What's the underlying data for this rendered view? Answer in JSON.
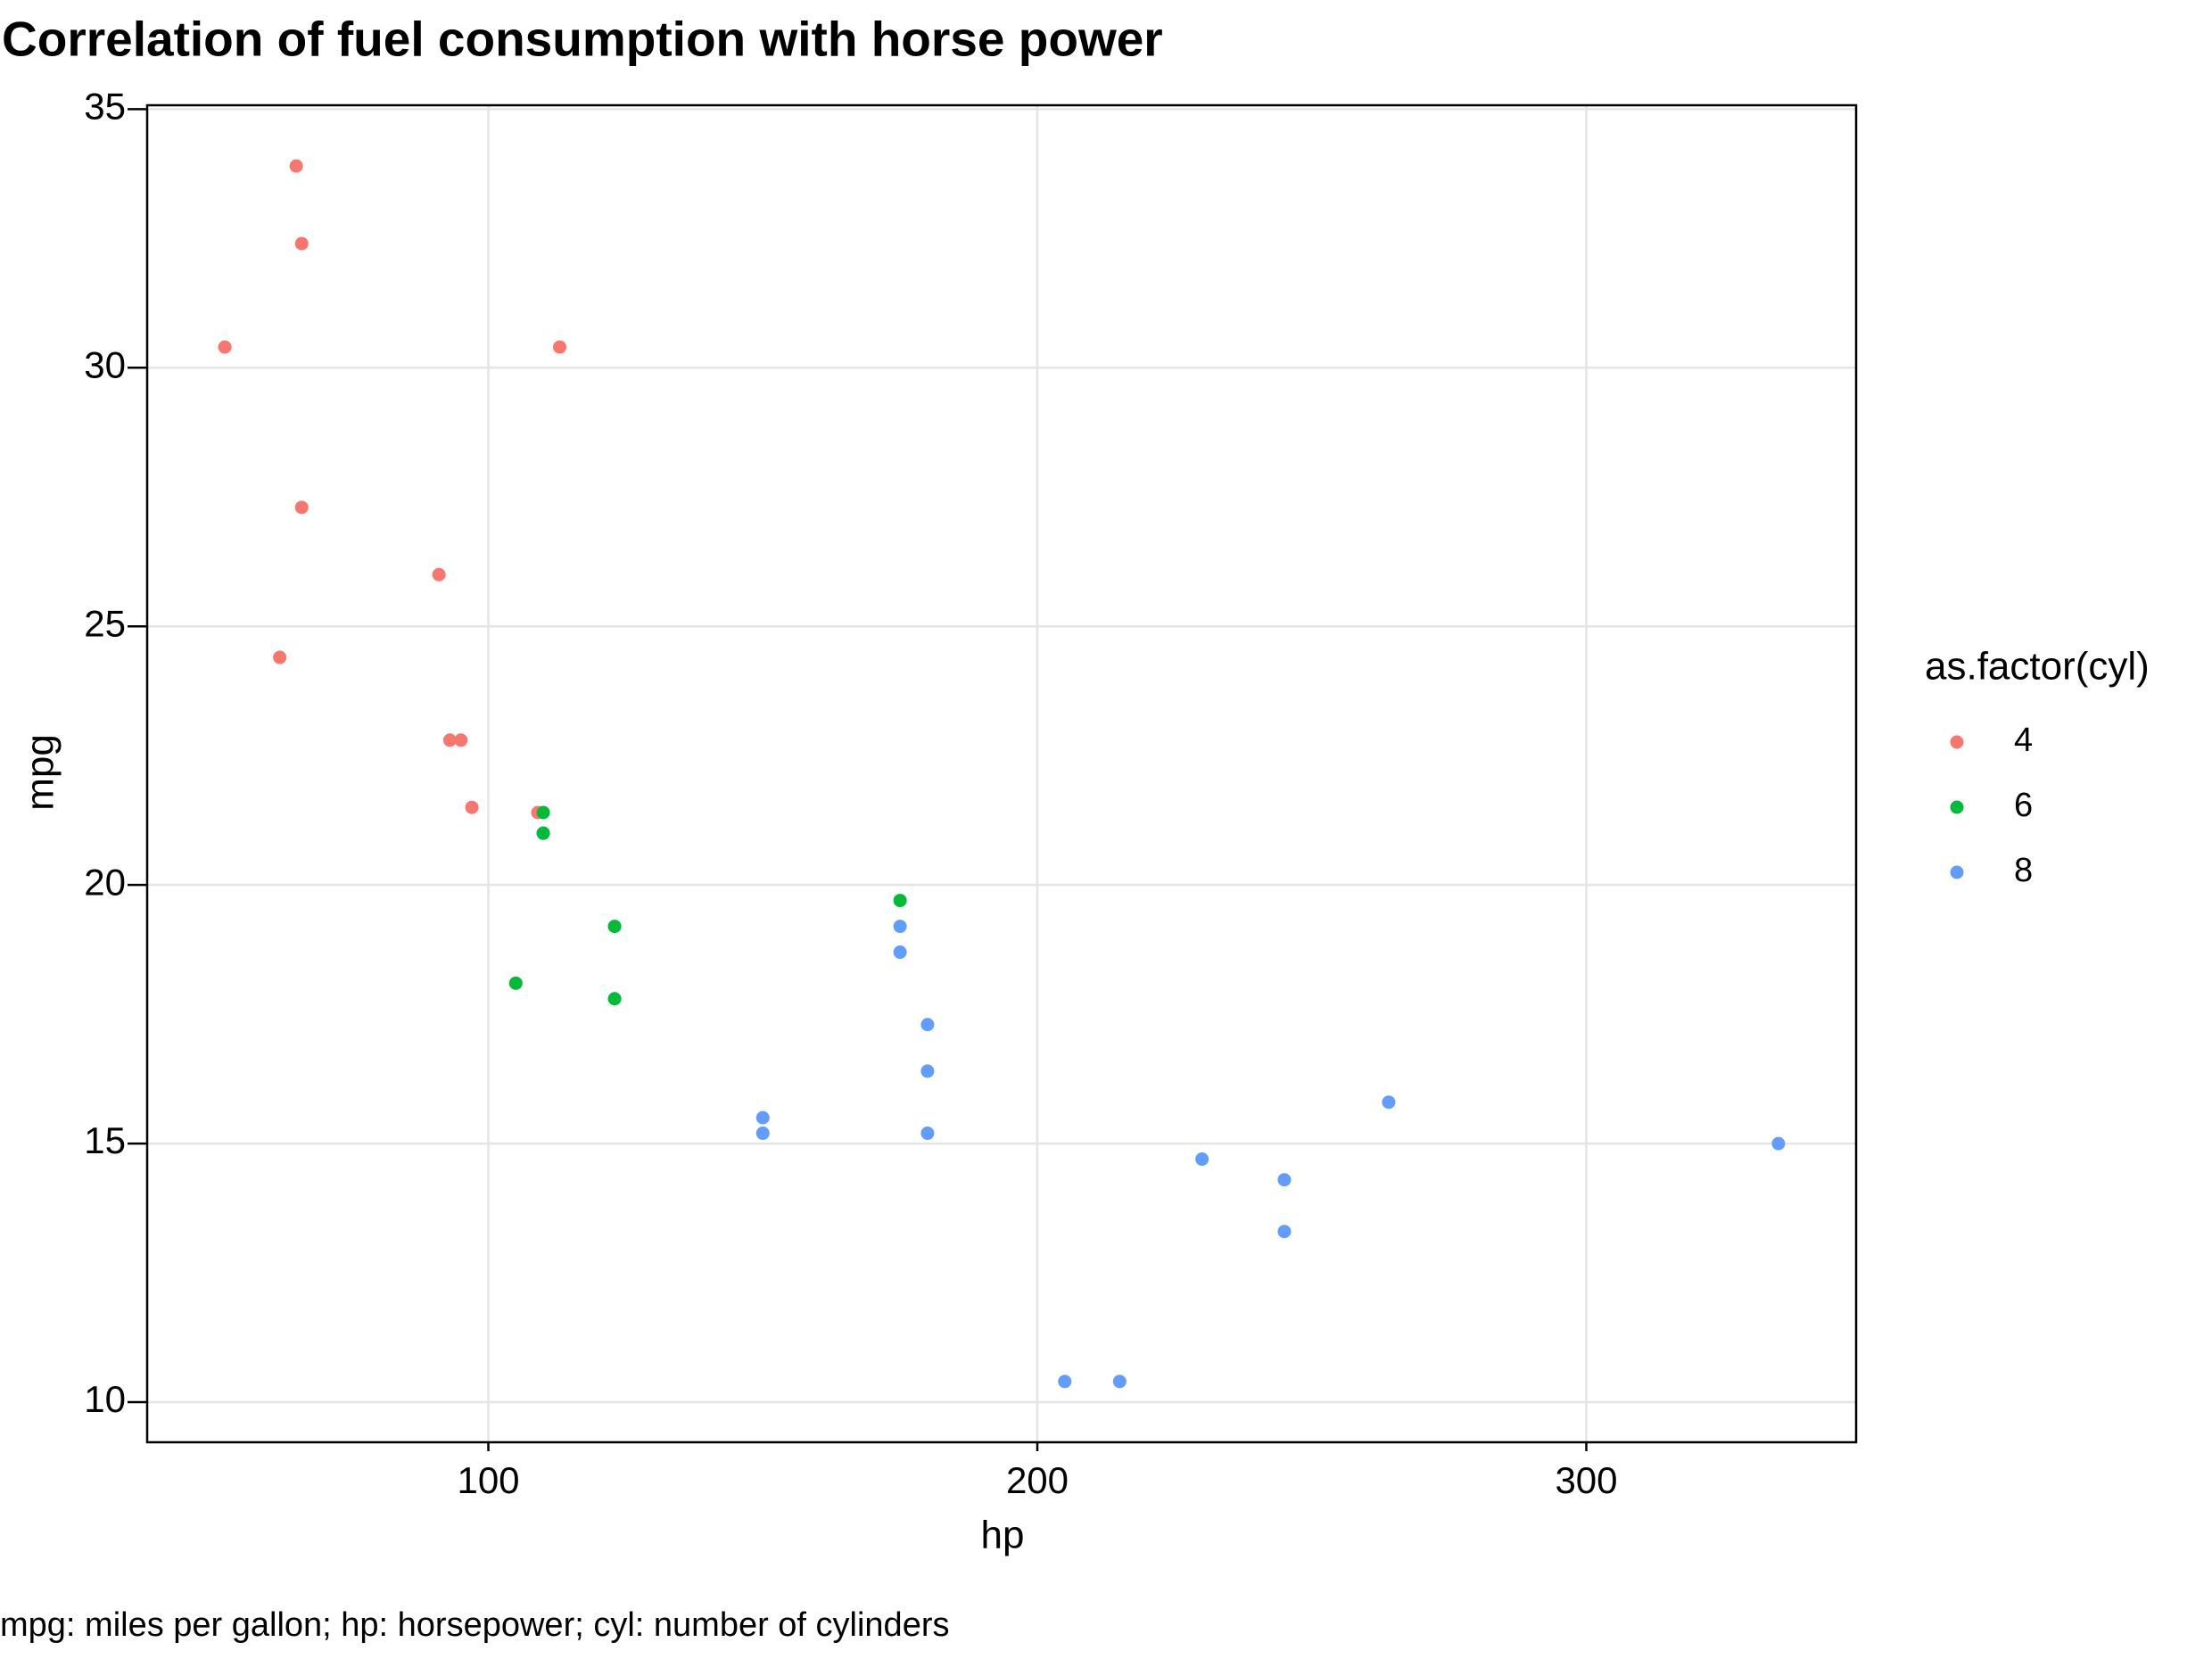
{
  "chart_data": {
    "type": "scatter",
    "title": "Correlation of fuel consumption with horse power",
    "caption": "mpg: miles per gallon; hp: horsepower; cyl: number of cylinders",
    "x_label": "hp",
    "y_label": "mpg",
    "legend_title": "as.factor(cyl)",
    "legend_position": "right",
    "grid": true,
    "xlim": [
      37.85,
      349.15
    ],
    "ylim": [
      9.225,
      35.075
    ],
    "xticks": [
      100,
      200,
      300
    ],
    "yticks": [
      10,
      15,
      20,
      25,
      30,
      35
    ],
    "series": [
      {
        "name": "4",
        "color": "#f8766d",
        "x": [
          93,
          62,
          95,
          66,
          52,
          65,
          97,
          66,
          91,
          113,
          109
        ],
        "values": [
          22.8,
          24.4,
          22.8,
          32.4,
          30.4,
          33.9,
          21.5,
          27.3,
          26.0,
          30.4,
          21.4
        ]
      },
      {
        "name": "6",
        "color": "#00ba38",
        "x": [
          110,
          110,
          110,
          105,
          123,
          123,
          175
        ],
        "values": [
          21.0,
          21.0,
          21.4,
          18.1,
          19.2,
          17.8,
          19.7
        ]
      },
      {
        "name": "8",
        "color": "#619cff",
        "x": [
          175,
          245,
          180,
          180,
          180,
          205,
          215,
          230,
          150,
          150,
          245,
          335,
          264,
          175
        ],
        "values": [
          18.7,
          14.3,
          16.4,
          17.3,
          15.2,
          10.4,
          10.4,
          14.7,
          15.5,
          15.2,
          13.3,
          15.0,
          15.8,
          19.2
        ]
      }
    ]
  }
}
